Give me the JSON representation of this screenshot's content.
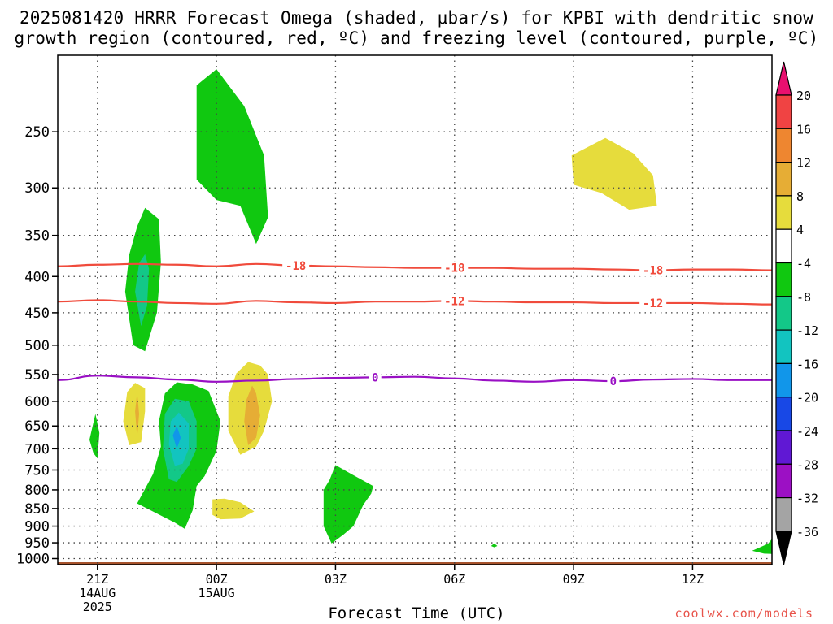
{
  "title_line1": "2025081420 HRRR Forecast Omega (shaded, μbar/s) for KPBI with dendritic snow",
  "title_line2": "growth region (contoured, red, ºC) and freezing level (contoured, purple, ºC)",
  "xlabel": "Forecast Time (UTC)",
  "credit": "coolwx.com/models",
  "chart_data": {
    "type": "heatmap",
    "x_ticks": [
      {
        "hour": 0,
        "lines": [
          "21Z",
          "14AUG",
          "2025"
        ]
      },
      {
        "hour": 3,
        "lines": [
          "00Z",
          "15AUG"
        ]
      },
      {
        "hour": 6,
        "lines": [
          "03Z"
        ]
      },
      {
        "hour": 9,
        "lines": [
          "06Z"
        ]
      },
      {
        "hour": 12,
        "lines": [
          "09Z"
        ]
      },
      {
        "hour": 15,
        "lines": [
          "12Z"
        ]
      }
    ],
    "xlim_hours": [
      -1,
      17
    ],
    "y_ticks_mb": [
      250,
      300,
      350,
      400,
      450,
      500,
      550,
      600,
      650,
      700,
      750,
      800,
      850,
      900,
      950,
      1000
    ],
    "ylim_mb": [
      1020,
      195
    ],
    "colorbar": {
      "labels": [
        "20",
        "16",
        "12",
        "8",
        "4",
        "-4",
        "-8",
        "-12",
        "-16",
        "-20",
        "-24",
        "-28",
        "-32",
        "-36"
      ],
      "colors": [
        "#e8106f",
        "#f04343",
        "#ee8630",
        "#e6ad35",
        "#e6dc3c",
        "#ffffff",
        "#10c810",
        "#13c888",
        "#12c4c0",
        "#1196ea",
        "#1848e6",
        "#6018d4",
        "#9c10c4",
        "#a4a4a4",
        "#000000"
      ]
    },
    "contours": [
      {
        "label": "-18",
        "color": "#f04b3c",
        "label_hours": [
          5.0,
          9.0,
          14.0
        ],
        "points": [
          [
            -1,
            387
          ],
          [
            0,
            385
          ],
          [
            1,
            384
          ],
          [
            2,
            385
          ],
          [
            3,
            387
          ],
          [
            4,
            384
          ],
          [
            5,
            386
          ],
          [
            6,
            387
          ],
          [
            7,
            388
          ],
          [
            8,
            389
          ],
          [
            9,
            389
          ],
          [
            10,
            389
          ],
          [
            11,
            390
          ],
          [
            12,
            390
          ],
          [
            13,
            391
          ],
          [
            14,
            392
          ],
          [
            15,
            391
          ],
          [
            16,
            391
          ],
          [
            17,
            392
          ]
        ]
      },
      {
        "label": "-12",
        "color": "#f04b3c",
        "label_hours": [
          9.0,
          14.0
        ],
        "points": [
          [
            -1,
            434
          ],
          [
            0,
            432
          ],
          [
            1,
            434
          ],
          [
            2,
            436
          ],
          [
            3,
            437
          ],
          [
            4,
            433
          ],
          [
            5,
            435
          ],
          [
            6,
            436
          ],
          [
            7,
            434
          ],
          [
            8,
            434
          ],
          [
            9,
            433
          ],
          [
            10,
            434
          ],
          [
            11,
            435
          ],
          [
            12,
            435
          ],
          [
            13,
            436
          ],
          [
            14,
            436
          ],
          [
            15,
            436
          ],
          [
            16,
            437
          ],
          [
            17,
            438
          ]
        ]
      },
      {
        "label": "0",
        "color": "#9910c4",
        "label_hours": [
          7.0,
          13.0
        ],
        "points": [
          [
            -1,
            560
          ],
          [
            0,
            552
          ],
          [
            1,
            555
          ],
          [
            2,
            559
          ],
          [
            3,
            563
          ],
          [
            4,
            561
          ],
          [
            5,
            558
          ],
          [
            6,
            556
          ],
          [
            7,
            555
          ],
          [
            8,
            554
          ],
          [
            9,
            557
          ],
          [
            10,
            561
          ],
          [
            11,
            563
          ],
          [
            12,
            560
          ],
          [
            13,
            562
          ],
          [
            14,
            559
          ],
          [
            15,
            558
          ],
          [
            16,
            560
          ],
          [
            17,
            560
          ]
        ]
      }
    ],
    "shaded_regions": [
      {
        "value": -4,
        "color": "#10c810",
        "points": [
          [
            3.0,
            204
          ],
          [
            3.7,
            230
          ],
          [
            4.2,
            270
          ],
          [
            4.3,
            330
          ],
          [
            4.0,
            360
          ],
          [
            3.6,
            318
          ],
          [
            3.0,
            312
          ],
          [
            2.5,
            292
          ],
          [
            2.5,
            215
          ]
        ]
      },
      {
        "value": -4,
        "color": "#10c810",
        "points": [
          [
            0.9,
            500
          ],
          [
            0.7,
            420
          ],
          [
            0.8,
            373
          ],
          [
            1.0,
            340
          ],
          [
            1.2,
            320
          ],
          [
            1.55,
            332
          ],
          [
            1.6,
            382
          ],
          [
            1.5,
            450
          ],
          [
            1.2,
            510
          ]
        ]
      },
      {
        "value": -8,
        "color": "#13c888",
        "points": [
          [
            1.1,
            470
          ],
          [
            0.95,
            420
          ],
          [
            1.05,
            383
          ],
          [
            1.2,
            372
          ],
          [
            1.3,
            390
          ],
          [
            1.25,
            440
          ]
        ]
      },
      {
        "value": -4,
        "color": "#10c810",
        "points": [
          [
            -0.1,
            710
          ],
          [
            -0.2,
            680
          ],
          [
            -0.05,
            625
          ],
          [
            0.05,
            665
          ],
          [
            0.0,
            722
          ]
        ]
      },
      {
        "value": 4,
        "color": "#e6dc3c",
        "points": [
          [
            0.8,
            692
          ],
          [
            0.65,
            640
          ],
          [
            0.75,
            582
          ],
          [
            0.95,
            565
          ],
          [
            1.2,
            575
          ],
          [
            1.2,
            620
          ],
          [
            1.1,
            685
          ]
        ]
      },
      {
        "value": 8,
        "color": "#e6ad35",
        "points": [
          [
            1.0,
            675
          ],
          [
            0.95,
            620
          ],
          [
            1.0,
            583
          ],
          [
            1.05,
            625
          ]
        ]
      },
      {
        "value": -4,
        "color": "#10c810",
        "points": [
          [
            1.0,
            836
          ],
          [
            1.4,
            760
          ],
          [
            1.6,
            695
          ],
          [
            1.55,
            640
          ],
          [
            1.7,
            585
          ],
          [
            2.0,
            564
          ],
          [
            2.4,
            568
          ],
          [
            2.8,
            580
          ],
          [
            3.1,
            640
          ],
          [
            3.0,
            705
          ],
          [
            2.7,
            765
          ],
          [
            2.5,
            790
          ],
          [
            2.4,
            855
          ],
          [
            2.2,
            908
          ],
          [
            1.95,
            890
          ]
        ]
      },
      {
        "value": -8,
        "color": "#13c888",
        "points": [
          [
            1.8,
            773
          ],
          [
            1.65,
            700
          ],
          [
            1.7,
            625
          ],
          [
            1.95,
            595
          ],
          [
            2.3,
            600
          ],
          [
            2.5,
            640
          ],
          [
            2.5,
            700
          ],
          [
            2.3,
            740
          ],
          [
            2.0,
            780
          ]
        ]
      },
      {
        "value": -12,
        "color": "#12c4c0",
        "points": [
          [
            1.95,
            740
          ],
          [
            1.8,
            690
          ],
          [
            1.85,
            640
          ],
          [
            2.05,
            622
          ],
          [
            2.3,
            645
          ],
          [
            2.3,
            700
          ],
          [
            2.15,
            735
          ]
        ]
      },
      {
        "value": -16,
        "color": "#1196ea",
        "points": [
          [
            2.0,
            700
          ],
          [
            1.9,
            670
          ],
          [
            2.0,
            650
          ],
          [
            2.1,
            675
          ]
        ]
      },
      {
        "value": 4,
        "color": "#e6dc3c",
        "points": [
          [
            3.6,
            714
          ],
          [
            3.3,
            660
          ],
          [
            3.3,
            590
          ],
          [
            3.5,
            548
          ],
          [
            3.8,
            528
          ],
          [
            4.1,
            534
          ],
          [
            4.3,
            550
          ],
          [
            4.4,
            600
          ],
          [
            4.2,
            660
          ],
          [
            4.0,
            695
          ]
        ]
      },
      {
        "value": 8,
        "color": "#e6ad35",
        "points": [
          [
            3.8,
            692
          ],
          [
            3.7,
            640
          ],
          [
            3.75,
            598
          ],
          [
            3.9,
            570
          ],
          [
            4.0,
            585
          ],
          [
            4.1,
            628
          ],
          [
            4.0,
            675
          ]
        ]
      },
      {
        "value": 4,
        "color": "#e6dc3c",
        "points": [
          [
            2.9,
            868
          ],
          [
            2.9,
            825
          ],
          [
            3.2,
            823
          ],
          [
            3.6,
            833
          ],
          [
            3.95,
            858
          ],
          [
            3.6,
            878
          ],
          [
            3.1,
            880
          ]
        ]
      },
      {
        "value": -4,
        "color": "#10c810",
        "points": [
          [
            5.9,
            952
          ],
          [
            5.7,
            900
          ],
          [
            5.7,
            800
          ],
          [
            5.85,
            775
          ],
          [
            6.0,
            738
          ],
          [
            6.4,
            760
          ],
          [
            6.95,
            790
          ],
          [
            6.9,
            810
          ],
          [
            6.7,
            840
          ],
          [
            6.45,
            900
          ],
          [
            6.2,
            925
          ]
        ]
      },
      {
        "value": 4,
        "color": "#e6dc3c",
        "points": [
          [
            12.0,
            297
          ],
          [
            11.95,
            270
          ],
          [
            12.8,
            255
          ],
          [
            13.5,
            268
          ],
          [
            14.0,
            288
          ],
          [
            14.1,
            318
          ],
          [
            13.4,
            322
          ],
          [
            12.7,
            305
          ]
        ]
      },
      {
        "value": -4,
        "color": "#10c810",
        "points": [
          [
            10.0,
            964
          ],
          [
            9.92,
            960
          ],
          [
            10.0,
            952
          ],
          [
            10.08,
            960
          ]
        ]
      },
      {
        "value": -4,
        "color": "#10c810",
        "points": [
          [
            16.5,
            975
          ],
          [
            16.9,
            953
          ],
          [
            17.0,
            938
          ],
          [
            17.0,
            985
          ],
          [
            16.8,
            984
          ]
        ]
      }
    ],
    "ground": {
      "color": "#a6522b",
      "top_mb": 1012
    }
  }
}
